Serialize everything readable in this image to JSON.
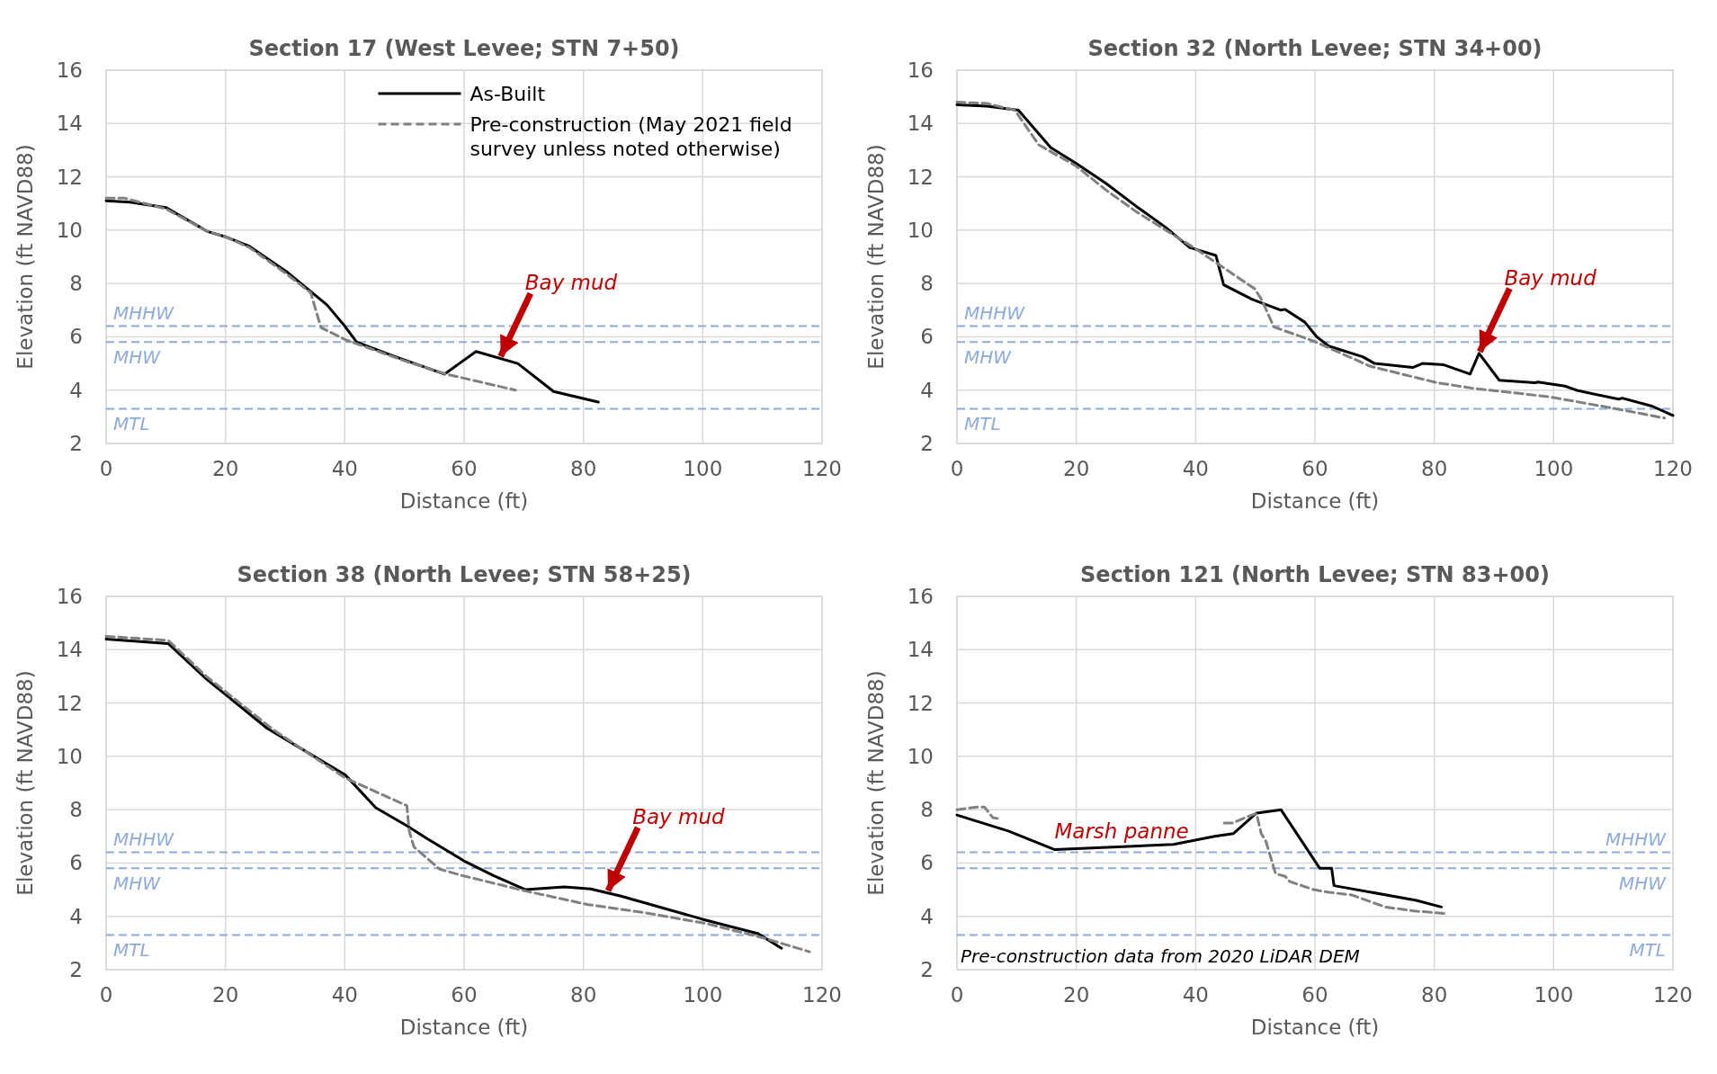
{
  "chart_data": [
    {
      "type": "line",
      "title": "Section 17 (West Levee; STN 7+50)",
      "xlabel": "Distance (ft)",
      "ylabel": "Elevation (ft NAVD88)",
      "xlim": [
        0,
        120
      ],
      "xticks": [
        0,
        20,
        40,
        60,
        80,
        100,
        120
      ],
      "ylim": [
        2,
        16
      ],
      "yticks": [
        2,
        4,
        6,
        8,
        10,
        12,
        14,
        16
      ],
      "grid": true,
      "legend": "top right",
      "series": [
        {
          "name": "As-Built",
          "color": "#000000",
          "line_style": "solid",
          "x": [
            0,
            4,
            10,
            17,
            20,
            24,
            30.5,
            37,
            40,
            42,
            48.5,
            56.7,
            62,
            69,
            75,
            82.5
          ],
          "values": [
            11.1,
            11.05,
            10.85,
            9.95,
            9.75,
            9.4,
            8.4,
            7.2,
            6.4,
            5.8,
            5.25,
            4.6,
            5.45,
            5.0,
            3.95,
            3.55
          ]
        },
        {
          "name": "Pre-construction (May 2021 field survey unless noted otherwise)",
          "color": "#808080",
          "line_style": "dashed",
          "x": [
            0,
            3,
            10,
            17,
            20,
            24,
            30,
            34.3,
            36,
            40,
            50,
            57,
            68.6
          ],
          "values": [
            11.2,
            11.2,
            10.8,
            9.95,
            9.75,
            9.35,
            8.4,
            7.65,
            6.35,
            5.9,
            5.1,
            4.6,
            4.0
          ]
        }
      ],
      "ref_lines": [
        {
          "axis": "y",
          "value": 6.4,
          "label": "MHHW",
          "color": "#8eaadb",
          "line_style": "dashed"
        },
        {
          "axis": "y",
          "value": 5.8,
          "label": "MHW",
          "color": "#8eaadb",
          "line_style": "dashed"
        },
        {
          "axis": "y",
          "value": 3.3,
          "label": "MTL",
          "color": "#8eaadb",
          "line_style": "dashed"
        }
      ],
      "annotations": [
        {
          "text": "Bay mud",
          "x": 66,
          "y": 5.2
        }
      ]
    },
    {
      "type": "line",
      "title": "Section 32 (North Levee; STN 34+00)",
      "xlabel": "Distance (ft)",
      "ylabel": "Elevation (ft NAVD88)",
      "xlim": [
        0,
        120
      ],
      "xticks": [
        0,
        20,
        40,
        60,
        80,
        100,
        120
      ],
      "ylim": [
        2,
        16
      ],
      "yticks": [
        2,
        4,
        6,
        8,
        10,
        12,
        14,
        16
      ],
      "grid": true,
      "legend": false,
      "series": [
        {
          "color": "#000000",
          "line_style": "solid",
          "x": [
            0,
            5,
            10.3,
            15.7,
            20,
            25,
            30,
            35,
            39,
            43.4,
            44.7,
            49.5,
            54.3,
            55,
            58.3,
            60.3,
            62.3,
            68,
            70,
            76.4,
            78,
            81.6,
            86,
            87.5,
            90.9,
            96.9,
            97.4,
            101.9,
            104.1,
            110.9,
            111.5,
            116.5,
            120
          ],
          "values": [
            14.7,
            14.65,
            14.5,
            13.1,
            12.5,
            11.75,
            10.9,
            10.1,
            9.35,
            9.05,
            7.95,
            7.4,
            7.0,
            7.03,
            6.55,
            6.0,
            5.65,
            5.25,
            5.0,
            4.85,
            5.0,
            4.95,
            4.6,
            5.38,
            4.37,
            4.28,
            4.3,
            4.15,
            3.98,
            3.66,
            3.7,
            3.4,
            3.05
          ]
        },
        {
          "color": "#808080",
          "line_style": "dashed",
          "x": [
            0,
            5,
            9.7,
            13.7,
            20,
            25,
            30,
            40,
            49.9,
            51.1,
            53.1,
            59.9,
            69.2,
            80.4,
            86.4,
            99.3,
            110.5,
            118.6
          ],
          "values": [
            14.8,
            14.75,
            14.5,
            13.2,
            12.4,
            11.5,
            10.7,
            9.3,
            7.8,
            7.38,
            6.37,
            5.83,
            4.9,
            4.28,
            4.07,
            3.75,
            3.3,
            2.95
          ]
        }
      ],
      "ref_lines": [
        {
          "axis": "y",
          "value": 6.4,
          "label": "MHHW",
          "color": "#8eaadb",
          "line_style": "dashed"
        },
        {
          "axis": "y",
          "value": 5.8,
          "label": "MHW",
          "color": "#8eaadb",
          "line_style": "dashed"
        },
        {
          "axis": "y",
          "value": 3.3,
          "label": "MTL",
          "color": "#8eaadb",
          "line_style": "dashed"
        }
      ],
      "annotations": [
        {
          "text": "Bay mud",
          "x": 87.5,
          "y": 5.38
        }
      ]
    },
    {
      "type": "line",
      "title": "Section 38 (North Levee; STN 58+25)",
      "xlabel": "Distance (ft)",
      "ylabel": "Elevation (ft NAVD88)",
      "xlim": [
        0,
        120
      ],
      "xticks": [
        0,
        20,
        40,
        60,
        80,
        100,
        120
      ],
      "ylim": [
        2,
        16
      ],
      "yticks": [
        2,
        4,
        6,
        8,
        10,
        12,
        14,
        16
      ],
      "grid": true,
      "legend": false,
      "series": [
        {
          "color": "#000000",
          "line_style": "solid",
          "x": [
            0,
            10.4,
            16.8,
            27,
            40.1,
            45.2,
            50.4,
            53.9,
            60.2,
            65,
            70.3,
            76.8,
            81.2,
            86.3,
            99.8,
            109.3,
            113.2
          ],
          "values": [
            14.4,
            14.23,
            12.9,
            11.05,
            9.3,
            8.07,
            7.4,
            6.9,
            6.05,
            5.52,
            5.0,
            5.1,
            5.03,
            4.76,
            3.9,
            3.35,
            2.8
          ]
        },
        {
          "color": "#808080",
          "line_style": "dashed",
          "x": [
            0,
            10.4,
            16.8,
            28,
            40,
            50.4,
            50.8,
            51.6,
            55.9,
            59.5,
            70.5,
            80.8,
            90.7,
            100.6,
            110,
            117.9
          ],
          "values": [
            14.5,
            14.35,
            13.0,
            11.0,
            9.2,
            8.15,
            7.2,
            6.6,
            5.77,
            5.54,
            4.94,
            4.44,
            4.12,
            3.73,
            3.2,
            2.67
          ]
        }
      ],
      "ref_lines": [
        {
          "axis": "y",
          "value": 6.4,
          "label": "MHHW",
          "color": "#8eaadb",
          "line_style": "dashed"
        },
        {
          "axis": "y",
          "value": 5.8,
          "label": "MHW",
          "color": "#8eaadb",
          "line_style": "dashed"
        },
        {
          "axis": "y",
          "value": 3.3,
          "label": "MTL",
          "color": "#8eaadb",
          "line_style": "dashed"
        }
      ],
      "annotations": [
        {
          "text": "Bay mud",
          "x": 84,
          "y": 4.9
        }
      ]
    },
    {
      "type": "line",
      "title": "Section 121 (North Levee; STN 83+00)",
      "xlabel": "Distance (ft)",
      "ylabel": "Elevation (ft NAVD88)",
      "xlim": [
        0,
        120
      ],
      "xticks": [
        0,
        20,
        40,
        60,
        80,
        100,
        120
      ],
      "ylim": [
        2,
        16
      ],
      "yticks": [
        2,
        4,
        6,
        8,
        10,
        12,
        14,
        16
      ],
      "grid": true,
      "legend": false,
      "series": [
        {
          "color": "#000000",
          "line_style": "solid",
          "x": [
            0,
            8.6,
            16.4,
            36.3,
            43.2,
            46.3,
            50.2,
            54.3,
            60.8,
            62.8,
            63.2,
            77,
            81.2
          ],
          "values": [
            7.8,
            7.2,
            6.5,
            6.7,
            7.0,
            7.1,
            7.87,
            8.0,
            5.8,
            5.8,
            5.15,
            4.6,
            4.35
          ]
        },
        {
          "color": "#808080",
          "line_style": "dashed",
          "x": [
            0,
            3.4,
            4.6,
            6,
            7.4,
            7.5,
            44.8,
            46.2,
            49.4,
            50.2,
            51,
            51.8,
            53.4,
            55,
            55.8,
            59.8,
            62.4,
            66.2,
            71.8,
            76.6,
            82.2
          ],
          "values": [
            8.0,
            8.1,
            8.1,
            7.7,
            7.65,
            null,
            7.5,
            7.5,
            7.8,
            7.85,
            7.1,
            6.8,
            5.6,
            5.5,
            5.3,
            5.0,
            4.9,
            4.8,
            4.35,
            4.2,
            4.1
          ]
        }
      ],
      "ref_lines": [
        {
          "axis": "y",
          "value": 6.4,
          "label": "MHHW",
          "color": "#8eaadb",
          "line_style": "dashed"
        },
        {
          "axis": "y",
          "value": 5.8,
          "label": "MHW",
          "color": "#8eaadb",
          "line_style": "dashed"
        },
        {
          "axis": "y",
          "value": 3.3,
          "label": "MTL",
          "color": "#8eaadb",
          "line_style": "dashed"
        }
      ],
      "annotations": [
        "Marsh panne",
        "Pre-construction data from 2020 LiDAR DEM"
      ]
    }
  ]
}
